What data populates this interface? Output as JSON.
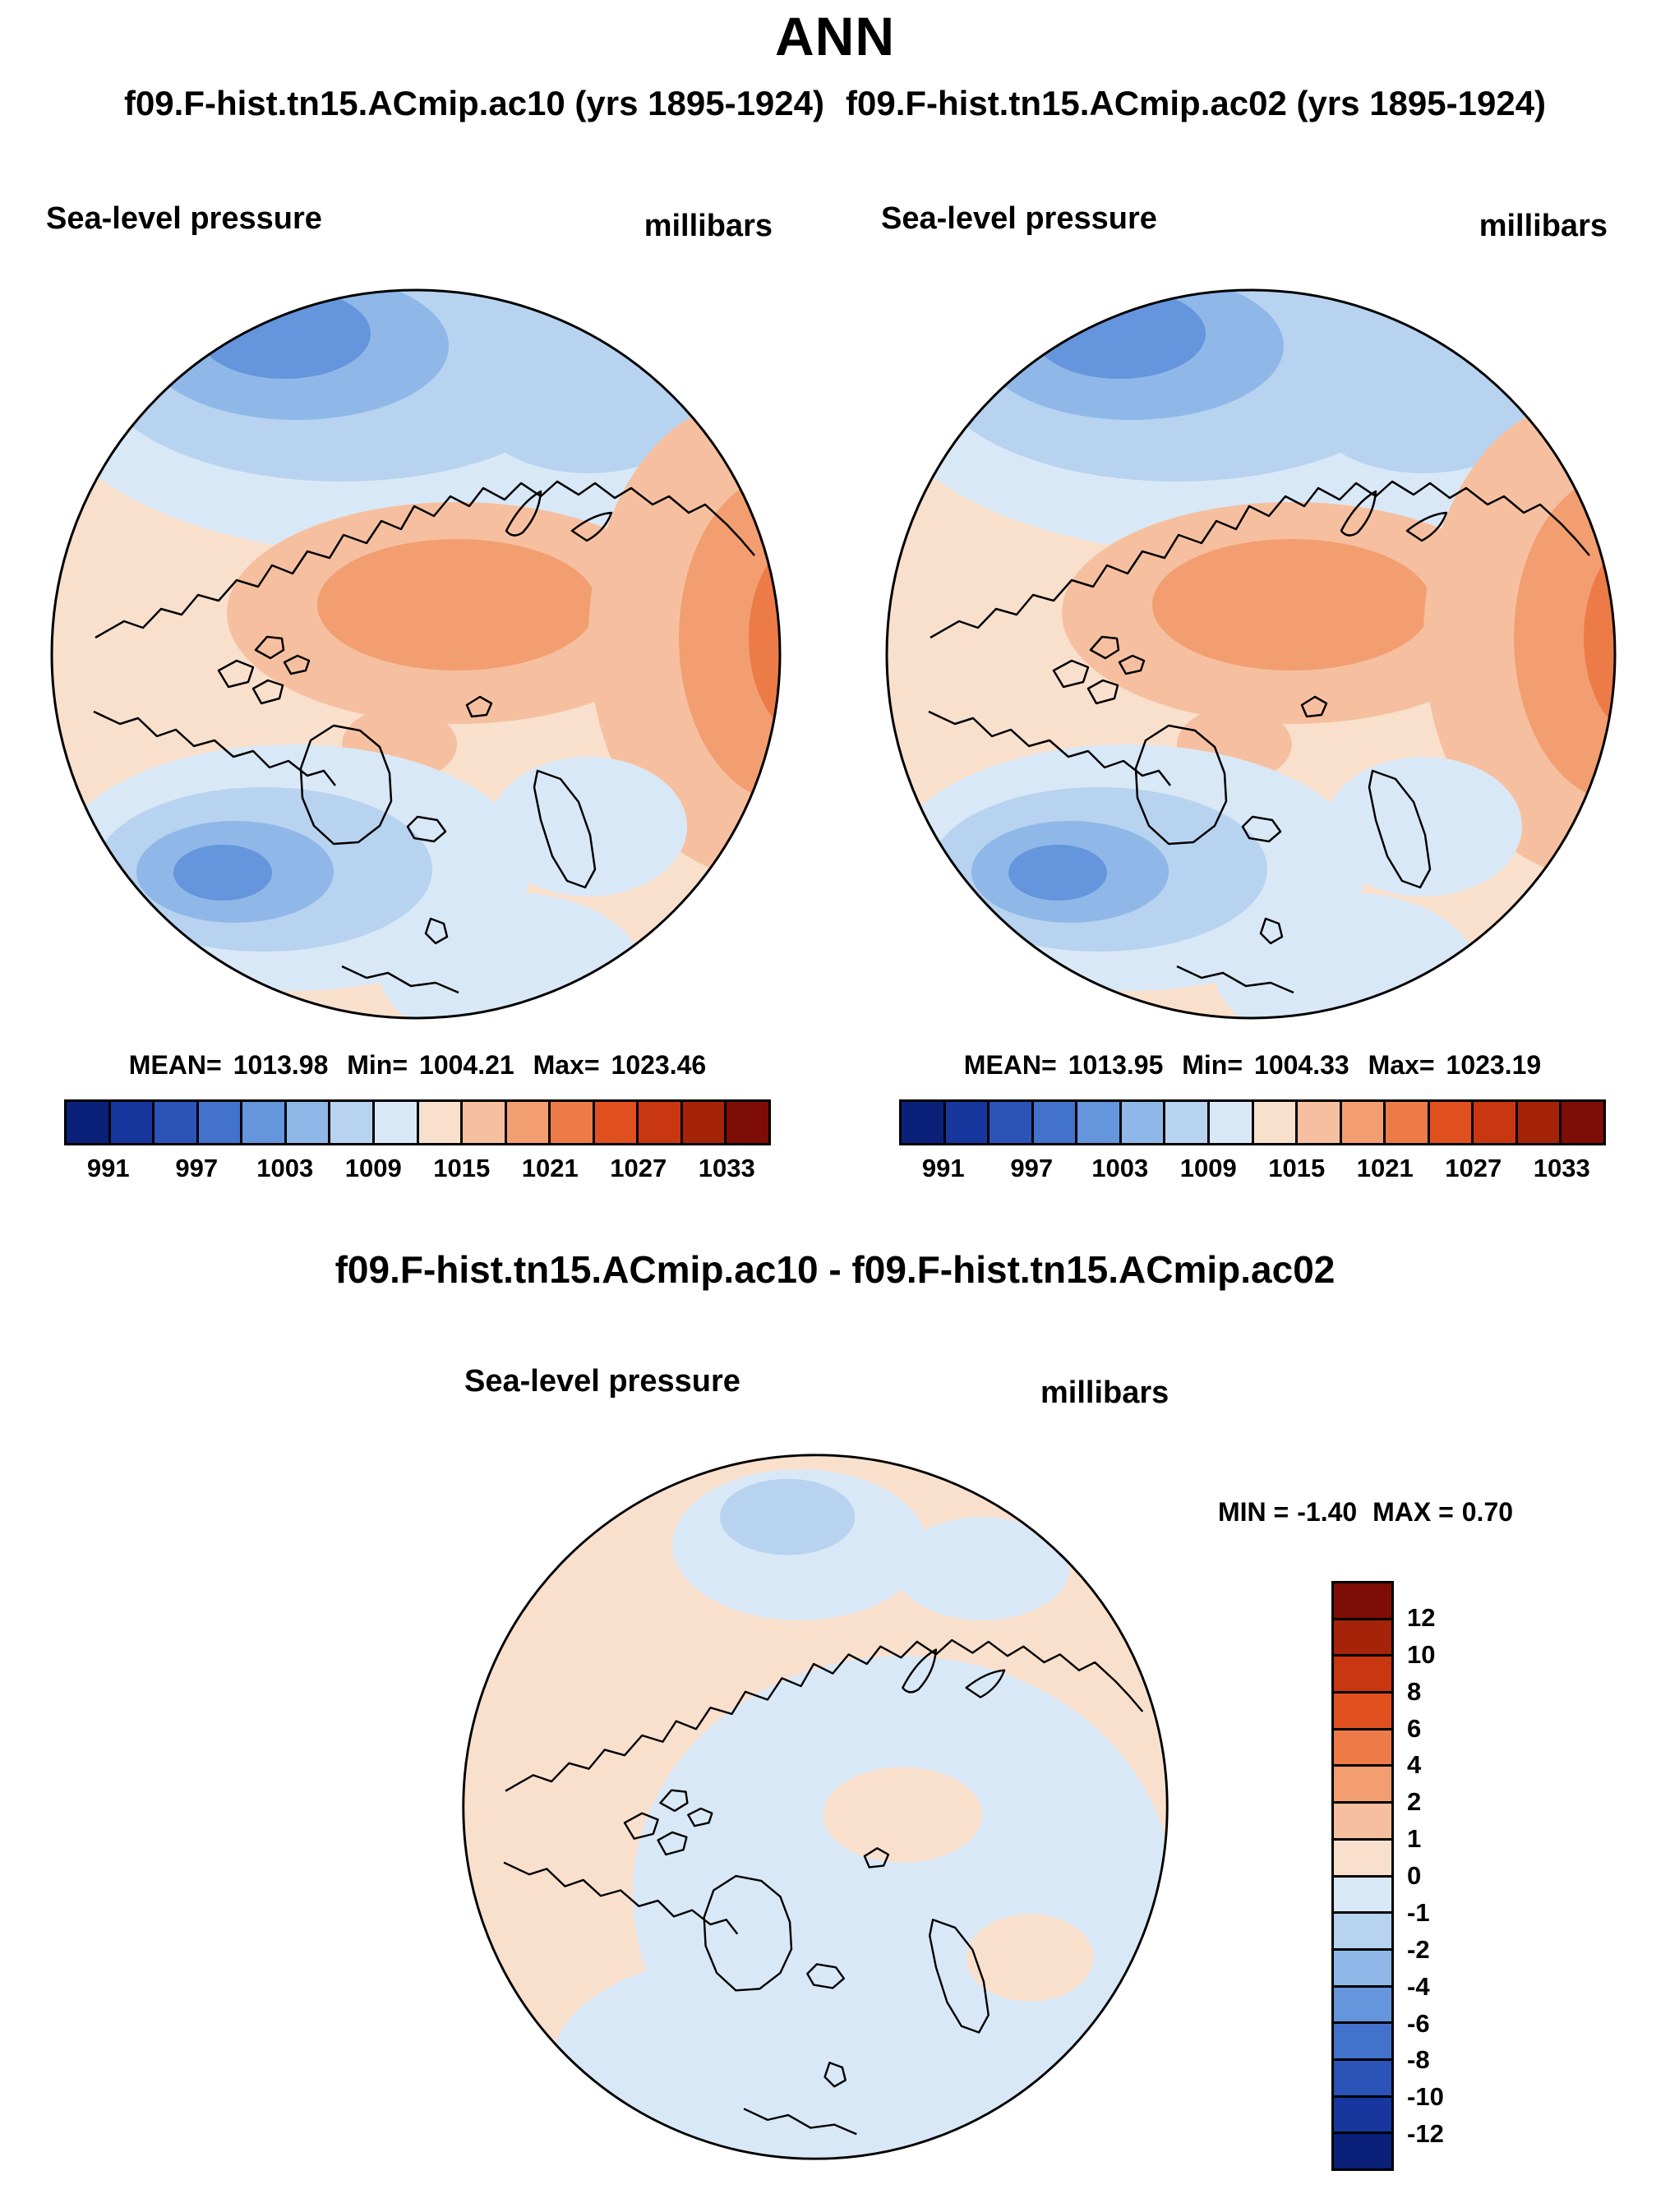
{
  "title": "ANN",
  "header": {
    "left_subtitle": "f09.F-hist.tn15.ACmip.ac10 (yrs 1895-1924)",
    "right_subtitle": "f09.F-hist.tn15.ACmip.ac02 (yrs 1895-1924)"
  },
  "panel_left": {
    "field_label": "Sea-level pressure",
    "units": "millibars",
    "stats": {
      "mean_label": "MEAN=",
      "mean": "1013.98",
      "min_label": "Min=",
      "min": "1004.21",
      "max_label": "Max=",
      "max": "1023.46"
    }
  },
  "panel_right": {
    "field_label": "Sea-level pressure",
    "units": "millibars",
    "stats": {
      "mean_label": "MEAN=",
      "mean": "1013.95",
      "min_label": "Min=",
      "min": "1004.33",
      "max_label": "Max=",
      "max": "1023.19"
    }
  },
  "diff": {
    "title": "f09.F-hist.tn15.ACmip.ac10 - f09.F-hist.tn15.ACmip.ac02",
    "field_label": "Sea-level pressure",
    "units": "millibars",
    "min_label": "MIN =",
    "min": "-1.40",
    "max_label": "MAX =",
    "max": "0.70"
  },
  "colorbars": {
    "slp": {
      "colors": [
        "#0A2079",
        "#17379E",
        "#2B53B8",
        "#4272CC",
        "#6595DC",
        "#8FB8E8",
        "#B7D3F0",
        "#D9E8F6",
        "#F9E0CD",
        "#F6C0A0",
        "#F29E70",
        "#EC7B48",
        "#E1511F",
        "#C93711",
        "#A52309",
        "#7E0D05"
      ],
      "ticks": [
        "991",
        "997",
        "1003",
        "1009",
        "1015",
        "1021",
        "1027",
        "1033"
      ]
    },
    "diff": {
      "colors": [
        "#7E0D05",
        "#A52309",
        "#C93711",
        "#E1511F",
        "#EC7B48",
        "#F29E70",
        "#F6C0A0",
        "#F9E0CD",
        "#D9E8F6",
        "#B7D3F0",
        "#8FB8E8",
        "#6595DC",
        "#4272CC",
        "#2B53B8",
        "#17379E",
        "#0A2079"
      ],
      "labels": [
        "12",
        "10",
        "8",
        "6",
        "4",
        "2",
        "1",
        "0",
        "-1",
        "-2",
        "-4",
        "-6",
        "-8",
        "-10",
        "-12"
      ]
    }
  },
  "chart_data": [
    {
      "type": "heatmap",
      "panel": "top-left",
      "title": "f09.F-hist.tn15.ACmip.ac10 (yrs 1895-1924)",
      "variable": "Sea-level pressure",
      "units": "millibars",
      "projection": "north-polar-stereographic",
      "stats": {
        "mean": 1013.98,
        "min": 1004.21,
        "max": 1023.46
      },
      "colorbar_ticks": [
        991,
        997,
        1003,
        1009,
        1015,
        1021,
        1027,
        1033
      ],
      "legend_position": "below"
    },
    {
      "type": "heatmap",
      "panel": "top-right",
      "title": "f09.F-hist.tn15.ACmip.ac02 (yrs 1895-1924)",
      "variable": "Sea-level pressure",
      "units": "millibars",
      "projection": "north-polar-stereographic",
      "stats": {
        "mean": 1013.95,
        "min": 1004.33,
        "max": 1023.19
      },
      "colorbar_ticks": [
        991,
        997,
        1003,
        1009,
        1015,
        1021,
        1027,
        1033
      ],
      "legend_position": "below"
    },
    {
      "type": "heatmap",
      "panel": "difference",
      "title": "f09.F-hist.tn15.ACmip.ac10 - f09.F-hist.tn15.ACmip.ac02",
      "variable": "Sea-level pressure",
      "units": "millibars",
      "projection": "north-polar-stereographic",
      "stats": {
        "min": -1.4,
        "max": 0.7
      },
      "contour_levels": [
        12,
        10,
        8,
        6,
        4,
        2,
        1,
        0,
        -1,
        -2,
        -4,
        -6,
        -8,
        -10,
        -12
      ],
      "legend_position": "right"
    }
  ]
}
